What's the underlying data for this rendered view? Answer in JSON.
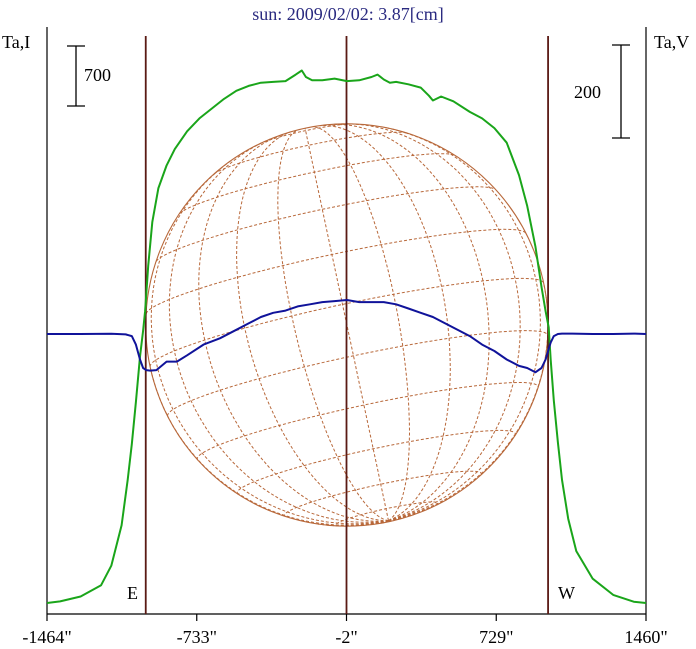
{
  "chart_data": {
    "type": "line",
    "title": "sun: 2009/02/02: 3.87[cm]",
    "y_left_label": "Ta,I",
    "y_right_label": "Ta,V",
    "left_scale_bar": "700",
    "right_scale_bar": "200",
    "x_tick_labels": [
      "-1464\"",
      "-733\"",
      "-2\"",
      "729\"",
      "1460\""
    ],
    "x_ticks": [
      -1464,
      -733,
      -2,
      729,
      1460
    ],
    "xlim": [
      -1464,
      1460
    ],
    "limb_markers": [
      {
        "label": "E",
        "x": -982
      },
      {
        "label": "W",
        "x": 982
      }
    ],
    "center_marker_x": -2,
    "solar_radius": 982,
    "colors": {
      "intensity": "#1aa51a",
      "polarization": "#10139a",
      "grid": "#b8683a",
      "markers": "#5a1a14",
      "text": "#000000",
      "title": "#2a2a80"
    },
    "series": [
      {
        "label_on_axis": "Ta,I",
        "color": "#1aa51a",
        "x": [
          -1464,
          -1400,
          -1300,
          -1200,
          -1150,
          -1100,
          -1070,
          -1050,
          -1030,
          -1010,
          -995,
          -985,
          -970,
          -950,
          -920,
          -880,
          -840,
          -780,
          -720,
          -660,
          -600,
          -540,
          -480,
          -420,
          -360,
          -300,
          -250,
          -220,
          -200,
          -170,
          -120,
          -60,
          0,
          60,
          120,
          150,
          180,
          210,
          240,
          300,
          360,
          400,
          420,
          460,
          520,
          600,
          660,
          720,
          780,
          840,
          880,
          920,
          950,
          970,
          985,
          995,
          1010,
          1030,
          1050,
          1080,
          1120,
          1200,
          1300,
          1400,
          1460
        ],
        "values": [
          0,
          10,
          40,
          110,
          230,
          480,
          760,
          980,
          1240,
          1520,
          1680,
          1800,
          2080,
          2350,
          2560,
          2700,
          2800,
          2910,
          2990,
          3050,
          3110,
          3160,
          3190,
          3210,
          3215,
          3220,
          3260,
          3285,
          3245,
          3225,
          3225,
          3235,
          3220,
          3225,
          3245,
          3260,
          3230,
          3210,
          3215,
          3200,
          3180,
          3130,
          3100,
          3125,
          3095,
          3030,
          2990,
          2930,
          2840,
          2640,
          2450,
          2200,
          1950,
          1800,
          1700,
          1500,
          1250,
          990,
          760,
          520,
          320,
          150,
          50,
          8,
          0
        ]
      },
      {
        "label_on_axis": "Ta,V",
        "color": "#10139a",
        "x": [
          -1464,
          -1300,
          -1150,
          -1080,
          -1050,
          -1030,
          -1010,
          -995,
          -980,
          -960,
          -930,
          -880,
          -830,
          -780,
          -700,
          -620,
          -540,
          -480,
          -420,
          -360,
          -300,
          -240,
          -180,
          -120,
          -60,
          0,
          60,
          120,
          180,
          240,
          300,
          360,
          420,
          480,
          540,
          600,
          660,
          720,
          780,
          840,
          880,
          920,
          950,
          970,
          985,
          995,
          1010,
          1030,
          1050,
          1100,
          1200,
          1300,
          1400,
          1460
        ],
        "values": [
          0,
          0,
          1,
          -2,
          -10,
          -50,
          -120,
          -160,
          -170,
          -172,
          -170,
          -130,
          -130,
          -100,
          -50,
          -20,
          20,
          50,
          80,
          100,
          110,
          130,
          140,
          150,
          155,
          160,
          150,
          150,
          150,
          140,
          120,
          100,
          80,
          50,
          20,
          -10,
          -50,
          -80,
          -120,
          -150,
          -160,
          -180,
          -160,
          -120,
          -70,
          -40,
          -10,
          0,
          2,
          2,
          0,
          0,
          2,
          0
        ]
      }
    ],
    "intensity_ylim": [
      0,
      3350
    ],
    "polarization_ylim": [
      -290,
      1480
    ],
    "grid": "solar disk with latitude/longitude lines"
  }
}
